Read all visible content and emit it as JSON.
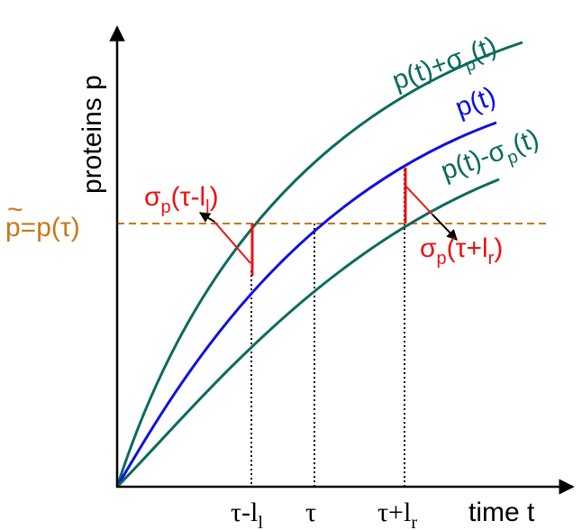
{
  "axes": {
    "y_label": "proteins p",
    "x_label": "time t"
  },
  "x_ticks": {
    "left": {
      "base": "τ-l",
      "sub": "l"
    },
    "center": {
      "base": "τ"
    },
    "right": {
      "base": "τ+l",
      "sub": "r"
    }
  },
  "curves": {
    "upper": {
      "label_parts": [
        "p(t)+σ",
        "p",
        "(t)"
      ],
      "color": "#0b6b5e"
    },
    "middle": {
      "label": "p(t)",
      "color": "#1010e0"
    },
    "lower": {
      "label_parts": [
        "p(t)-σ",
        "p",
        "(t)"
      ],
      "color": "#0b6b5e"
    }
  },
  "threshold": {
    "label_tilde": "~",
    "label": "p=p(τ)",
    "color": "#c87816"
  },
  "annotations": {
    "left": {
      "parts": [
        "σ",
        "p",
        "(τ-l",
        "l",
        ")"
      ],
      "color": "#ee1111"
    },
    "right": {
      "parts": [
        "σ",
        "p",
        "(τ+l",
        "r",
        ")"
      ],
      "color": "#ee1111"
    }
  },
  "colors": {
    "axis": "#000000",
    "marker": "#ee1111",
    "guide": "#000000"
  }
}
